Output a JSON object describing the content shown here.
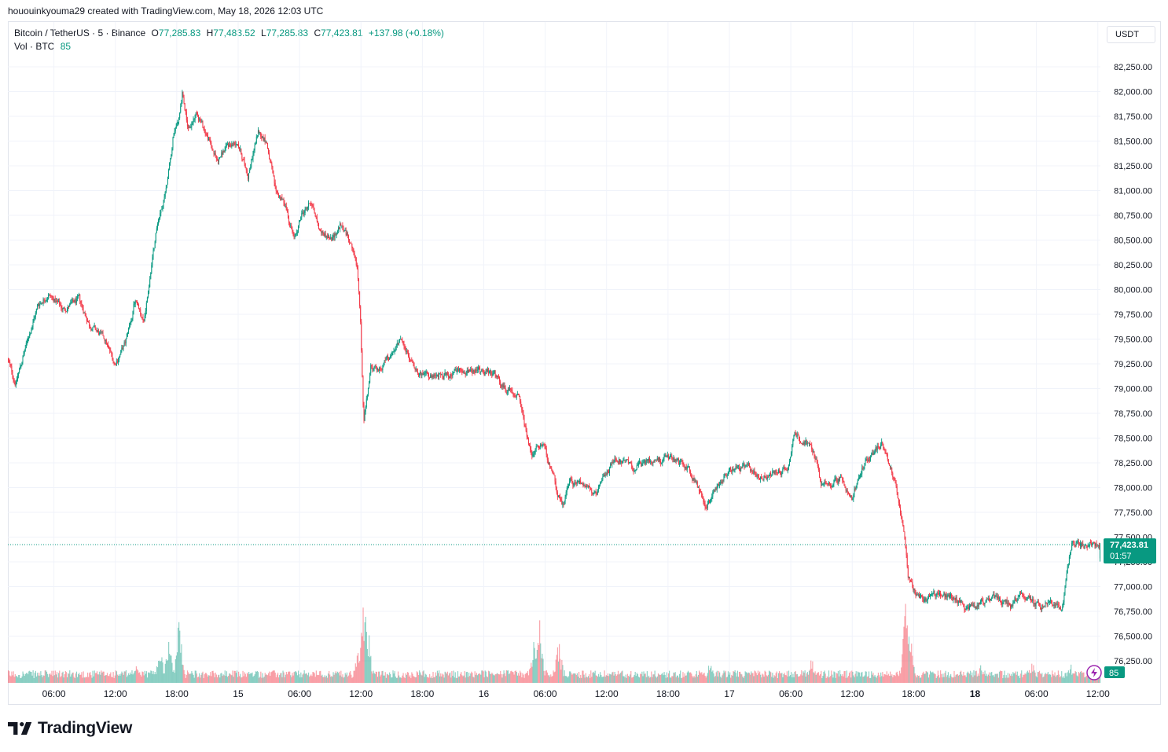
{
  "header": {
    "caption": "hououinkyouma29 created with TradingView.com, May 18, 2026 12:03 UTC"
  },
  "legend": {
    "symbol": "Bitcoin / TetherUS · 5 · Binance",
    "open_label": "O",
    "open": "77,285.83",
    "high_label": "H",
    "high": "77,483.52",
    "low_label": "L",
    "low": "77,285.83",
    "close_label": "C",
    "close": "77,423.81",
    "change": "+137.98 (+0.18%)",
    "vol_label": "Vol · BTC",
    "vol": "85"
  },
  "currency": "USDT",
  "last_price": {
    "price": "77,423.81",
    "countdown": "01:57"
  },
  "volume_badge": "85",
  "brand": {
    "name": "TradingView"
  },
  "colors": {
    "up": "#089981",
    "down": "#f23645",
    "grid": "#f0f3fa",
    "accent": "#089981"
  },
  "chart_data": {
    "type": "candlestick",
    "symbol": "BTC/USDT",
    "interval": "5",
    "exchange": "Binance",
    "y_axis": {
      "ticks": [
        "82,250.00",
        "82,000.00",
        "81,750.00",
        "81,500.00",
        "81,250.00",
        "81,000.00",
        "80,750.00",
        "80,500.00",
        "80,250.00",
        "80,000.00",
        "79,750.00",
        "79,500.00",
        "79,250.00",
        "79,000.00",
        "78,750.00",
        "78,500.00",
        "78,250.00",
        "78,000.00",
        "77,750.00",
        "77,500.00",
        "77,250.00",
        "77,000.00",
        "76,750.00",
        "76,500.00",
        "76,250.00"
      ],
      "tick_values": [
        82250,
        82000,
        81750,
        81500,
        81250,
        81000,
        80750,
        80500,
        80250,
        80000,
        79750,
        79500,
        79250,
        79000,
        78750,
        78500,
        78250,
        78000,
        77750,
        77500,
        77250,
        77000,
        76750,
        76500,
        76250
      ],
      "range": [
        76150,
        82350
      ]
    },
    "x_axis": {
      "ticks": [
        "06:00",
        "12:00",
        "18:00",
        "15",
        "06:00",
        "12:00",
        "18:00",
        "16",
        "06:00",
        "12:00",
        "18:00",
        "17",
        "06:00",
        "12:00",
        "18:00",
        "18",
        "06:00",
        "12:00"
      ],
      "bold": [
        false,
        false,
        false,
        false,
        false,
        false,
        false,
        false,
        false,
        false,
        false,
        false,
        false,
        false,
        false,
        true,
        false,
        false
      ],
      "tick_hours": [
        6,
        12,
        18,
        24,
        30,
        36,
        42,
        48,
        54,
        60,
        66,
        72,
        78,
        84,
        90,
        96,
        102,
        108
      ]
    },
    "x_range_hours": [
      1.5,
      108.25
    ],
    "price_path": [
      [
        1.5,
        79300
      ],
      [
        2.3,
        79050
      ],
      [
        3.5,
        79500
      ],
      [
        4.5,
        79850
      ],
      [
        5.5,
        79950
      ],
      [
        7,
        79800
      ],
      [
        8.5,
        79900
      ],
      [
        9.5,
        79650
      ],
      [
        11,
        79500
      ],
      [
        12,
        79250
      ],
      [
        13,
        79450
      ],
      [
        14,
        79900
      ],
      [
        14.8,
        79650
      ],
      [
        15.6,
        80250
      ],
      [
        16.2,
        80700
      ],
      [
        17,
        81000
      ],
      [
        17.7,
        81550
      ],
      [
        18.3,
        81750
      ],
      [
        18.6,
        82000
      ],
      [
        19.2,
        81600
      ],
      [
        20,
        81800
      ],
      [
        21,
        81550
      ],
      [
        22,
        81300
      ],
      [
        23,
        81450
      ],
      [
        24,
        81500
      ],
      [
        25,
        81150
      ],
      [
        26,
        81600
      ],
      [
        26.8,
        81500
      ],
      [
        27.7,
        81000
      ],
      [
        28.7,
        80850
      ],
      [
        29.5,
        80500
      ],
      [
        30.2,
        80750
      ],
      [
        31.2,
        80900
      ],
      [
        32,
        80600
      ],
      [
        33.2,
        80500
      ],
      [
        34,
        80650
      ],
      [
        35,
        80500
      ],
      [
        35.7,
        80200
      ],
      [
        36,
        79700
      ],
      [
        36.3,
        78700
      ],
      [
        37,
        79200
      ],
      [
        38,
        79200
      ],
      [
        39,
        79350
      ],
      [
        39.8,
        79500
      ],
      [
        40.8,
        79300
      ],
      [
        42,
        79150
      ],
      [
        43,
        79100
      ],
      [
        45,
        79150
      ],
      [
        47,
        79200
      ],
      [
        49,
        79150
      ],
      [
        50,
        79000
      ],
      [
        51.5,
        78950
      ],
      [
        52,
        78650
      ],
      [
        52.8,
        78300
      ],
      [
        53.2,
        78450
      ],
      [
        54,
        78400
      ],
      [
        55,
        78050
      ],
      [
        55.7,
        77800
      ],
      [
        56.5,
        78050
      ],
      [
        58,
        78050
      ],
      [
        59,
        77900
      ],
      [
        60,
        78150
      ],
      [
        61,
        78300
      ],
      [
        62.5,
        78200
      ],
      [
        64,
        78250
      ],
      [
        66,
        78300
      ],
      [
        68,
        78200
      ],
      [
        69.2,
        77950
      ],
      [
        69.8,
        77800
      ],
      [
        71,
        78050
      ],
      [
        72.5,
        78200
      ],
      [
        74,
        78200
      ],
      [
        75,
        78100
      ],
      [
        76.5,
        78150
      ],
      [
        77.8,
        78200
      ],
      [
        78.3,
        78550
      ],
      [
        79.5,
        78450
      ],
      [
        80.5,
        78300
      ],
      [
        81,
        78000
      ],
      [
        82,
        78050
      ],
      [
        83,
        78100
      ],
      [
        84,
        77900
      ],
      [
        85,
        78200
      ],
      [
        86,
        78350
      ],
      [
        87,
        78450
      ],
      [
        88,
        78150
      ],
      [
        88.7,
        77800
      ],
      [
        89.2,
        77450
      ],
      [
        89.5,
        77100
      ],
      [
        90,
        76950
      ],
      [
        91,
        76850
      ],
      [
        92,
        76950
      ],
      [
        93,
        76900
      ],
      [
        94,
        76900
      ],
      [
        95,
        76800
      ],
      [
        96,
        76800
      ],
      [
        97.5,
        76900
      ],
      [
        98.5,
        76850
      ],
      [
        99.5,
        76800
      ],
      [
        100.5,
        76950
      ],
      [
        101.5,
        76850
      ],
      [
        102.5,
        76800
      ],
      [
        103.7,
        76850
      ],
      [
        104.5,
        76750
      ],
      [
        105.1,
        77200
      ],
      [
        105.5,
        77420
      ]
    ],
    "volume_spikes": [
      [
        14,
        18
      ],
      [
        16.3,
        50
      ],
      [
        17.2,
        65
      ],
      [
        18.2,
        80
      ],
      [
        35.7,
        40
      ],
      [
        36.3,
        110
      ],
      [
        36.6,
        70
      ],
      [
        52.8,
        50
      ],
      [
        53.4,
        70
      ],
      [
        55.3,
        50
      ],
      [
        70,
        25
      ],
      [
        80,
        28
      ],
      [
        89.2,
        115
      ],
      [
        89.6,
        65
      ],
      [
        96.5,
        20
      ],
      [
        101.5,
        28
      ],
      [
        105.3,
        22
      ]
    ],
    "last": {
      "price": 77423.81,
      "open": 77285.83,
      "high": 77483.52,
      "low": 77285.83,
      "change": 137.98,
      "change_pct": 0.18,
      "volume": 85
    }
  }
}
